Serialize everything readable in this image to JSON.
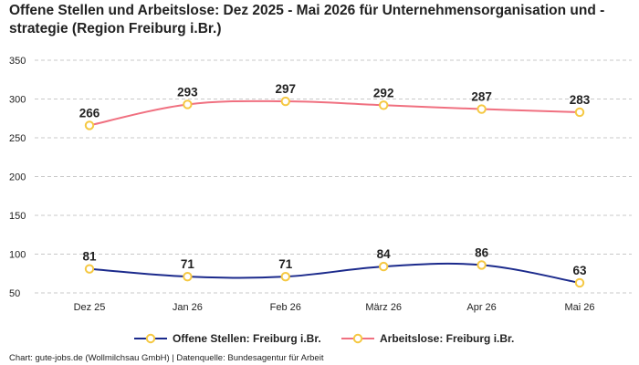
{
  "title": "Offene Stellen und Arbeitslose: Dez 2025 - Mai 2026 für Unternehmensorganisation und -strategie (Region Freiburg i.Br.)",
  "footer": "Chart: gute-jobs.de (Wollmilchsau GmbH) | Datenquelle: Bundesagentur für Arbeit",
  "chart_data": {
    "type": "line",
    "categories": [
      "Dez 25",
      "Jan 26",
      "Feb 26",
      "März 26",
      "Apr 26",
      "Mai 26"
    ],
    "series": [
      {
        "name": "Offene Stellen: Freiburg i.Br.",
        "values": [
          81,
          71,
          71,
          84,
          86,
          63
        ],
        "color": "#1b2a8c"
      },
      {
        "name": "Arbeitslose: Freiburg i.Br.",
        "values": [
          266,
          293,
          297,
          292,
          287,
          283
        ],
        "color": "#f07080"
      }
    ],
    "marker_color": "#f5c842",
    "yticks": [
      50,
      100,
      150,
      200,
      250,
      300,
      350
    ],
    "ylim": [
      50,
      350
    ],
    "grid": true,
    "legend_position": "bottom"
  }
}
